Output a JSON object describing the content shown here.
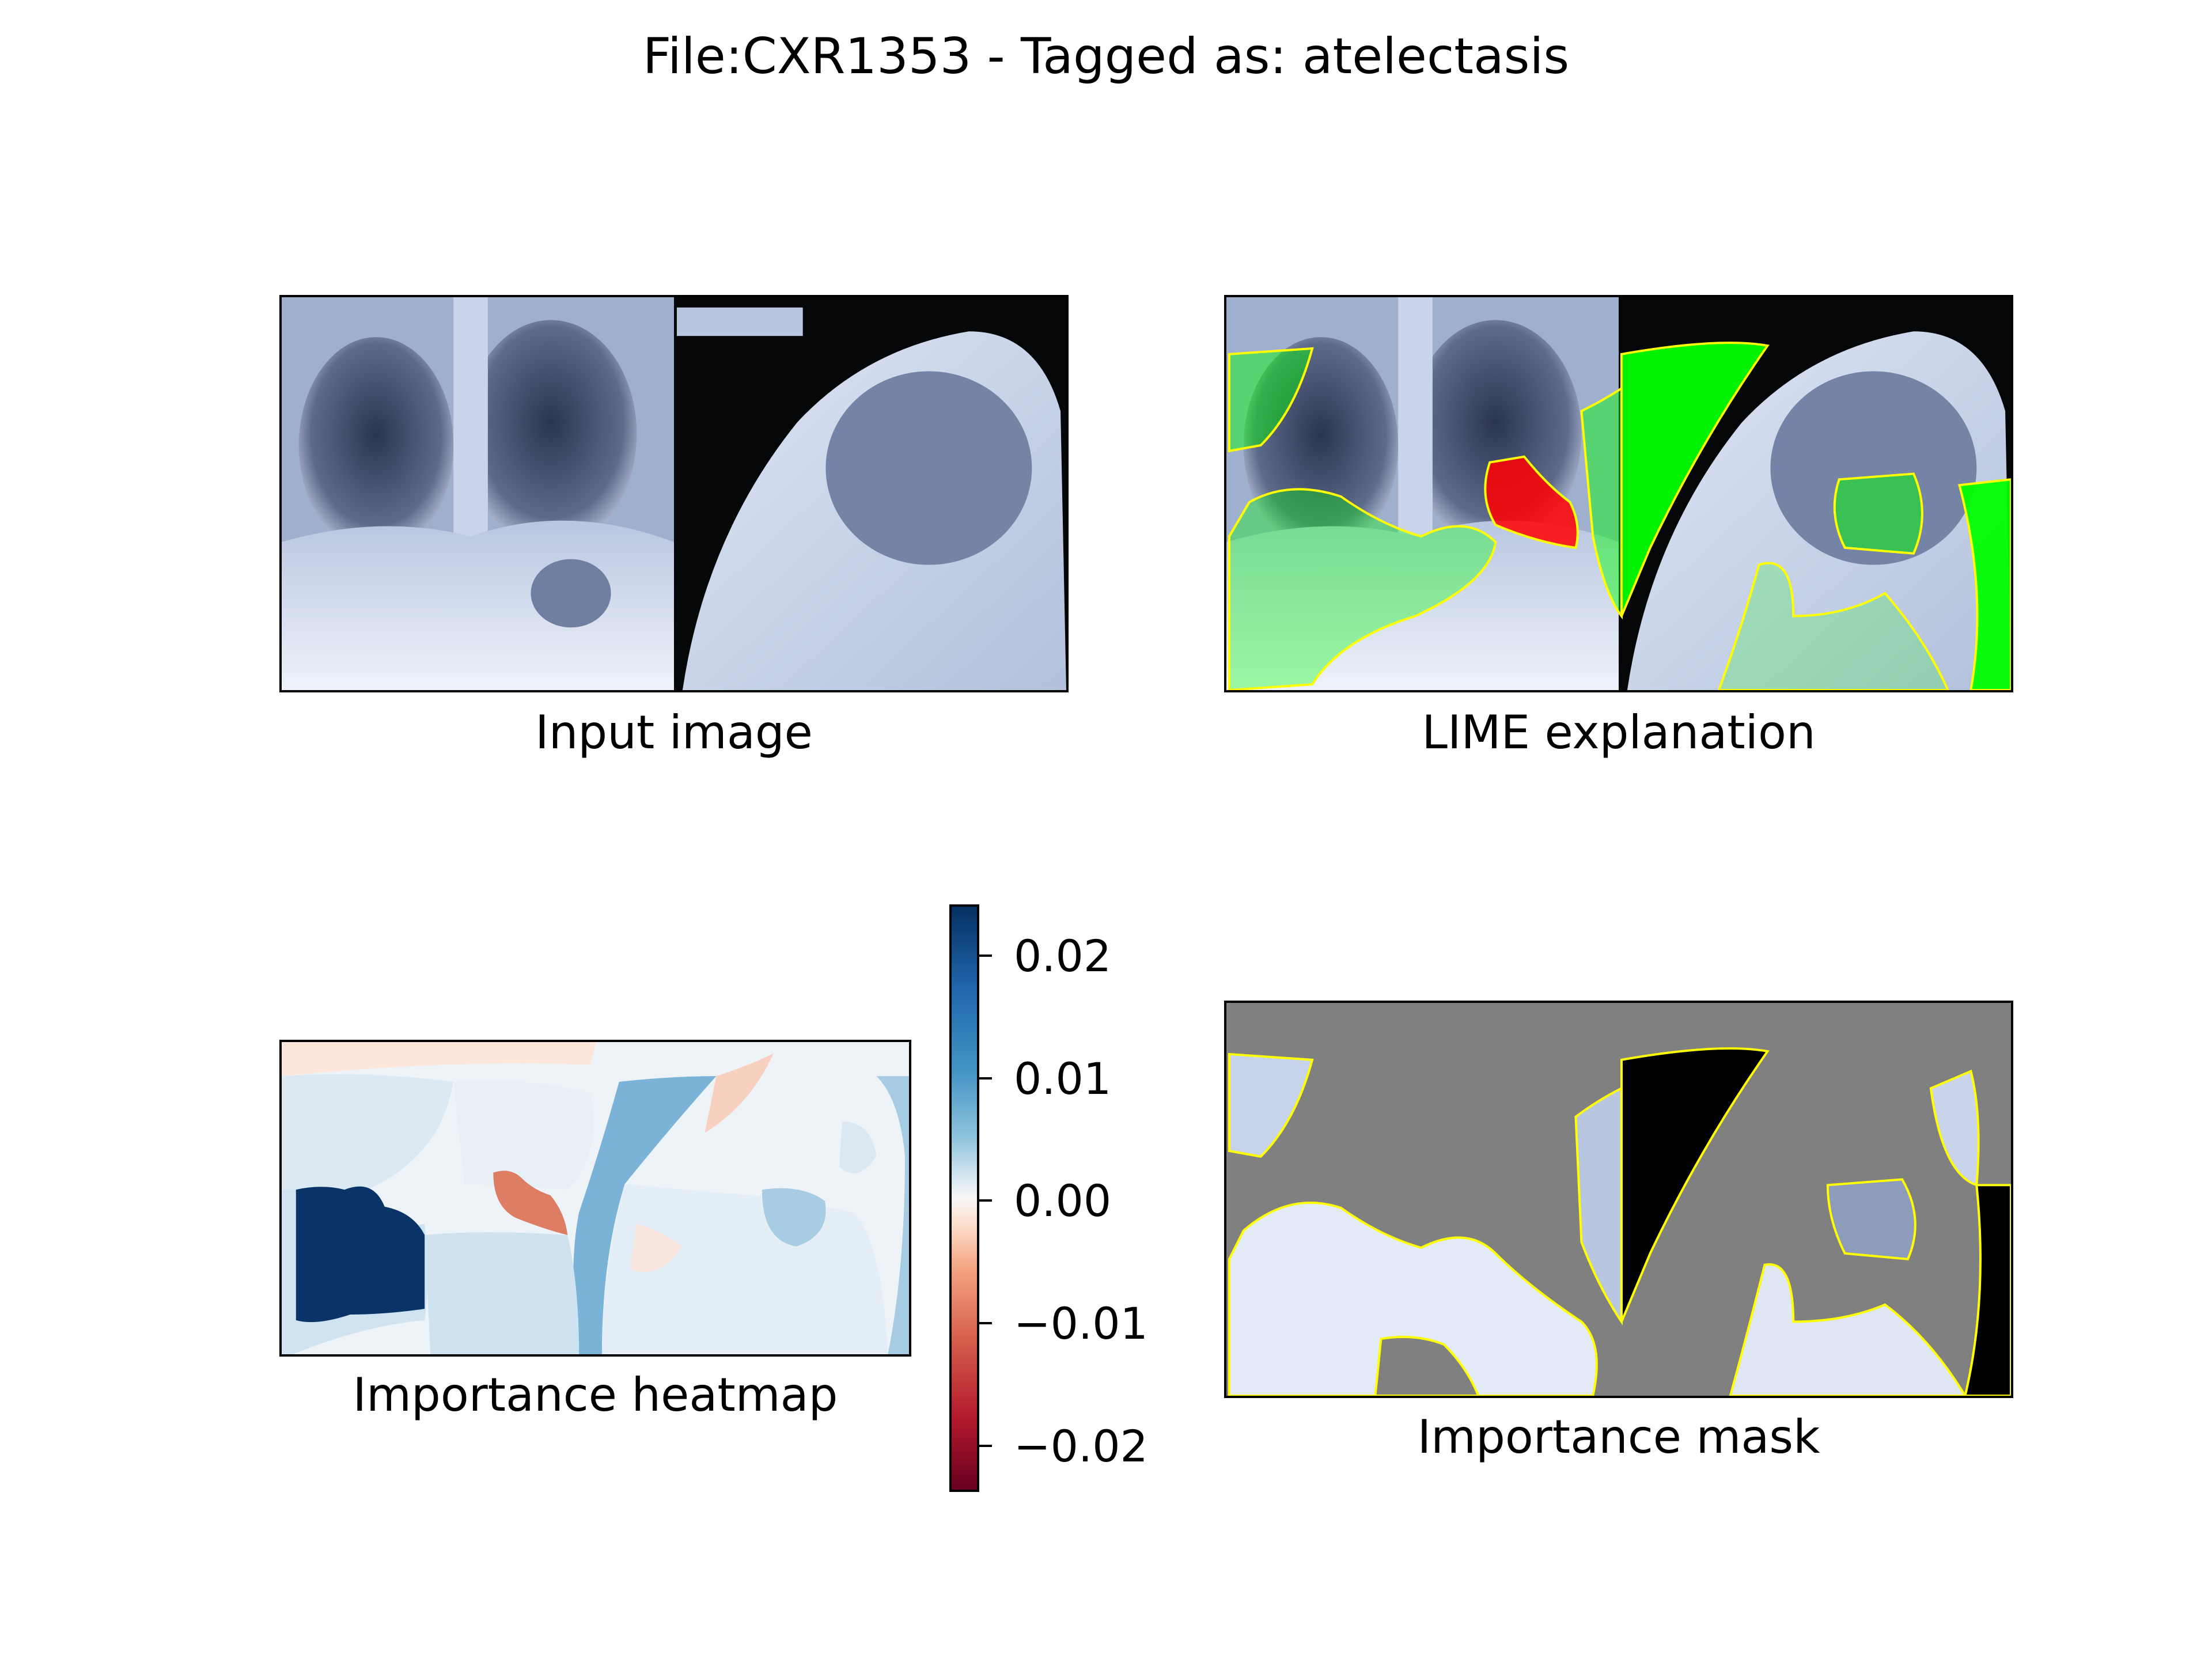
{
  "figure": {
    "title": "File:CXR1353 - Tagged as: atelectasis"
  },
  "panels": {
    "input": {
      "caption": "Input image"
    },
    "lime": {
      "caption": "LIME explanation"
    },
    "heatmap": {
      "caption": "Importance heatmap"
    },
    "mask": {
      "caption": "Importance mask"
    }
  },
  "colorbar": {
    "colormap": "RdBu",
    "range": [
      -0.024,
      0.024
    ],
    "ticks": [
      "0.02",
      "0.01",
      "0.00",
      "−0.01",
      "−0.02"
    ]
  },
  "colors": {
    "positive_region": "#00ff00",
    "negative_region": "#ff0000",
    "boundary": "#ffff00",
    "mask_background": "#808080"
  }
}
